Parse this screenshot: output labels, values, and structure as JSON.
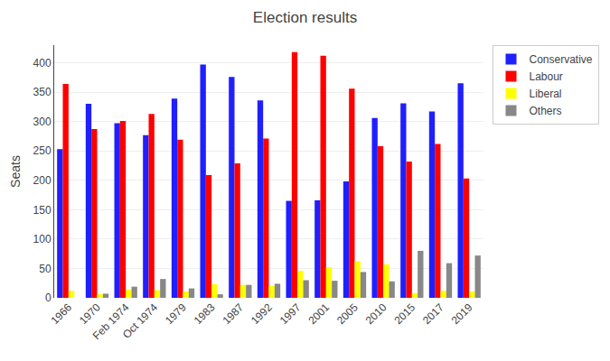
{
  "chart_data": {
    "type": "bar",
    "title": "Election results",
    "ylabel": "Seats",
    "categories": [
      "1966",
      "1970",
      "Feb 1974",
      "Oct 1974",
      "1979",
      "1983",
      "1987",
      "1992",
      "1997",
      "2001",
      "2005",
      "2010",
      "2015",
      "2017",
      "2019"
    ],
    "series": [
      {
        "name": "Conservative",
        "color": "#1f1fff",
        "values": [
          253,
          330,
          297,
          277,
          339,
          397,
          376,
          336,
          165,
          166,
          198,
          306,
          331,
          317,
          365
        ]
      },
      {
        "name": "Labour",
        "color": "#ff0000",
        "values": [
          364,
          287,
          301,
          313,
          269,
          209,
          229,
          271,
          418,
          412,
          356,
          258,
          232,
          262,
          203
        ]
      },
      {
        "name": "Liberal",
        "color": "#ffff00",
        "values": [
          12,
          6,
          14,
          13,
          11,
          23,
          22,
          20,
          46,
          52,
          62,
          57,
          8,
          12,
          11
        ]
      },
      {
        "name": "Others",
        "color": "#888888",
        "values": [
          0,
          7,
          19,
          32,
          16,
          6,
          22,
          24,
          30,
          29,
          44,
          28,
          80,
          59,
          72
        ]
      }
    ],
    "ylim": [
      0,
      430
    ],
    "yticks": [
      0,
      50,
      100,
      150,
      200,
      250,
      300,
      350,
      400
    ],
    "grid": true,
    "legend": "right"
  }
}
